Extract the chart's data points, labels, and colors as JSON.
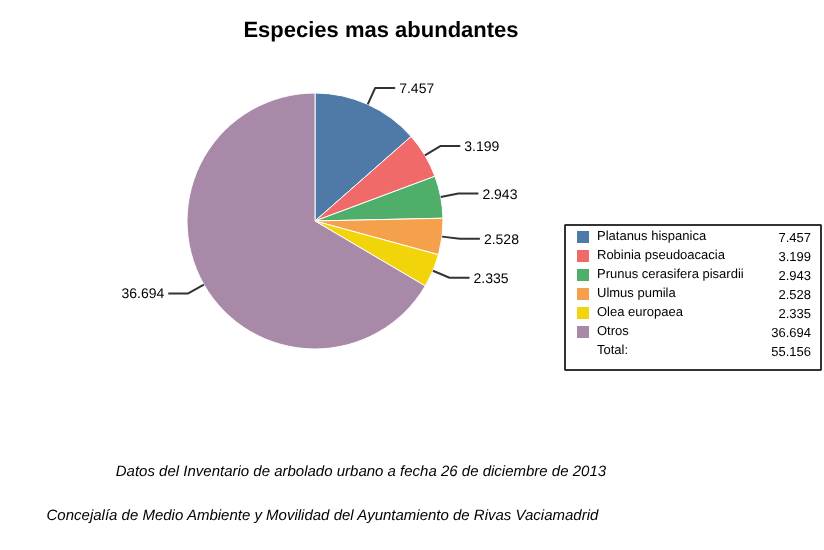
{
  "chart_data": {
    "type": "pie",
    "title": "Especies mas abundantes",
    "categories": [
      "Platanus hispanica",
      "Robinia pseudoacacia",
      "Prunus cerasifera pisardii",
      "Ulmus pumila",
      "Olea europaea",
      "Otros"
    ],
    "values": [
      7457,
      3199,
      2943,
      2528,
      2335,
      36694
    ],
    "value_labels": [
      "7.457",
      "3.199",
      "2.943",
      "2.528",
      "2.335",
      "36.694"
    ],
    "colors": [
      "#4f7aa8",
      "#f06a6a",
      "#4fae6a",
      "#f5a04a",
      "#f2d40a",
      "#a88aa8"
    ],
    "legend": "right",
    "annotations": [
      "Total:",
      "55.156",
      "Datos del Inventario de arbolado urbano a  fecha 26 de diciembre de 2013",
      "Concejalía de Medio Ambiente y Movilidad del Ayuntamiento de Rivas Vaciamadrid"
    ]
  }
}
